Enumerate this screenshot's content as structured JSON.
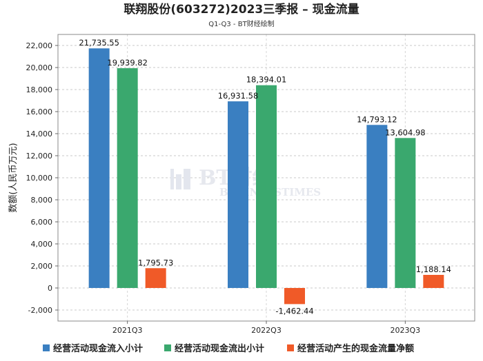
{
  "chart_data": {
    "type": "bar",
    "title": "联翔股份(603272)2023三季报 – 现金流量",
    "subtitle": "Q1-Q3 - BT财经绘制",
    "ylabel": "数额(人民币万元)",
    "xlabel": "",
    "categories": [
      "2021Q3",
      "2022Q3",
      "2023Q3"
    ],
    "ylim": [
      -3000,
      23000
    ],
    "yticks": [
      -2000,
      0,
      2000,
      4000,
      6000,
      8000,
      10000,
      12000,
      14000,
      16000,
      18000,
      20000,
      22000
    ],
    "ytick_labels": [
      "-2,000",
      "0",
      "2,000",
      "4,000",
      "6,000",
      "8,000",
      "10,000",
      "12,000",
      "14,000",
      "16,000",
      "18,000",
      "20,000",
      "22,000"
    ],
    "grid": true,
    "legend_position": "bottom",
    "series": [
      {
        "name": "经营活动现金流入小计",
        "color": "#3a7fc1",
        "values": [
          21735.55,
          16931.58,
          14793.12
        ],
        "labels": [
          "21,735.55",
          "16,931.58",
          "14,793.12"
        ]
      },
      {
        "name": "经营活动现金流出小计",
        "color": "#3aa86e",
        "values": [
          19939.82,
          18394.01,
          13604.98
        ],
        "labels": [
          "19,939.82",
          "18,394.01",
          "13,604.98"
        ]
      },
      {
        "name": "经营活动产生的现金流量净额",
        "color": "#f05a28",
        "values": [
          1795.73,
          -1462.44,
          1188.14
        ],
        "labels": [
          "1,795.73",
          "-1,462.44",
          "1,188.14"
        ]
      }
    ]
  },
  "watermark": {
    "logo_text": "BT财经",
    "sub_text": "BUSINESSTIMES"
  }
}
